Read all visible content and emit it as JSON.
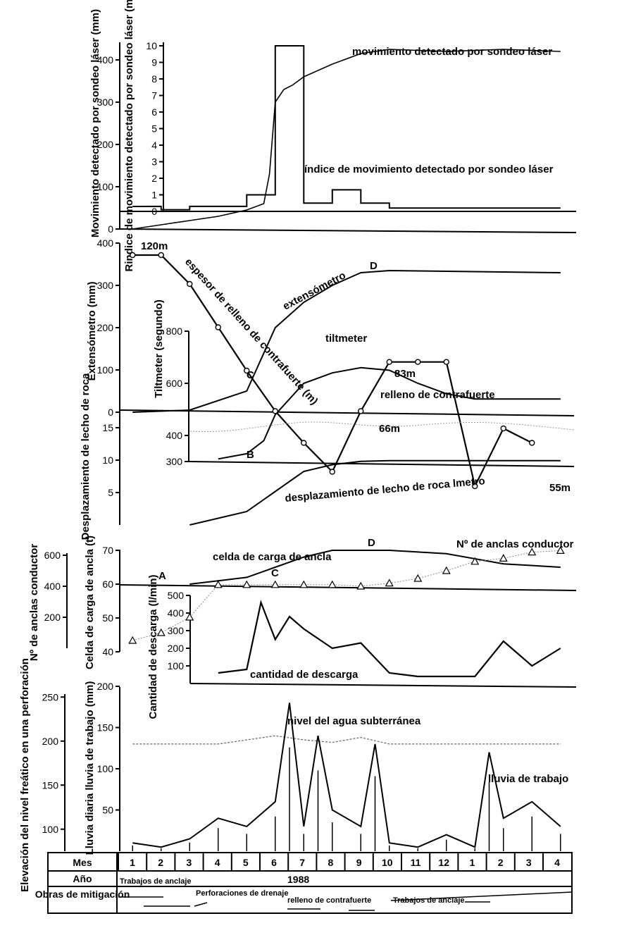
{
  "chart_data": [
    {
      "type": "line",
      "panel": "laser",
      "axes": [
        {
          "label": "Movimiento detectado por sondeo láser (mm)",
          "ticks": [
            "0",
            "100",
            "200",
            "300",
            "400"
          ]
        },
        {
          "label": "Rindice de movimiento detectado por sondeo láser (mm/día)",
          "ticks": [
            "0",
            "1",
            "2",
            "3",
            "4",
            "5",
            "6",
            "7",
            "8",
            "9",
            "10"
          ]
        }
      ],
      "series": [
        {
          "name": "movimiento detectado por sondeo láser",
          "unit": "mm",
          "x": [
            1,
            2,
            3,
            4,
            5,
            5.6,
            5.8,
            6.0,
            6.3,
            6.6,
            7,
            8,
            9,
            10,
            12,
            14,
            16
          ],
          "values": [
            0,
            10,
            20,
            30,
            45,
            60,
            130,
            300,
            330,
            340,
            360,
            390,
            415,
            425,
            420,
            425,
            420
          ]
        },
        {
          "name": "índice de movimiento detectado por sondeo láser",
          "unit": "mm/día",
          "x": [
            1,
            2,
            3,
            4,
            5,
            5.6,
            6.0,
            6.5,
            7,
            7.5,
            8,
            9,
            10,
            16
          ],
          "values": [
            0.3,
            0.1,
            0.3,
            0.3,
            1,
            1,
            10,
            10,
            0.5,
            0.5,
            1.3,
            0.5,
            0.2,
            0.2
          ]
        }
      ]
    },
    {
      "type": "line",
      "panel": "extensometer",
      "axes": [
        {
          "label": "Extensómetro (mm)",
          "ticks": [
            "0",
            "100",
            "200",
            "300",
            "400"
          ]
        },
        {
          "label": "Tiltmeter (segundo)",
          "ticks": [
            "300",
            "400",
            "600",
            "800"
          ]
        },
        {
          "label": "Desplazamiento de lecho de roca",
          "ticks": [
            "5",
            "10",
            "15"
          ]
        }
      ],
      "series": [
        {
          "name": "extensómetro",
          "x": [
            1,
            3,
            5,
            6,
            7,
            8,
            9,
            10,
            16
          ],
          "values": [
            0,
            5,
            50,
            200,
            260,
            300,
            330,
            335,
            330
          ]
        },
        {
          "name": "tiltmeter",
          "x": [
            4,
            5,
            5.6,
            6,
            7,
            8,
            9,
            10,
            11,
            12,
            13,
            16
          ],
          "values": [
            310,
            330,
            380,
            480,
            600,
            640,
            660,
            650,
            600,
            560,
            540,
            540
          ]
        },
        {
          "name": "espesor de relleno de contrafuerte",
          "unit": "m",
          "x": [
            1,
            2,
            3,
            4,
            5,
            6,
            7,
            8,
            9,
            10,
            11,
            12,
            13,
            14,
            15
          ],
          "values": [
            120,
            120,
            110,
            95,
            80,
            66,
            55,
            45,
            66,
            83,
            83,
            83,
            40,
            60,
            55
          ]
        },
        {
          "name": "desplazamiento de lecho de roca",
          "x": [
            3,
            5,
            6,
            7,
            8,
            9,
            10,
            16
          ],
          "values": [
            0,
            2,
            5,
            8,
            9,
            9.5,
            9.6,
            9.6
          ]
        }
      ],
      "annotations": [
        "120m",
        "83m",
        "66m",
        "55m",
        "A",
        "B",
        "C",
        "D"
      ]
    },
    {
      "type": "line",
      "panel": "anchor",
      "axes": [
        {
          "label": "Nº de anclas conductor",
          "ticks": [
            "200",
            "400",
            "600"
          ]
        },
        {
          "label": "Celda de carga de ancla (t)",
          "ticks": [
            "40",
            "50",
            "60",
            "70"
          ]
        },
        {
          "label": "Cantidad de descarga (l/min)",
          "ticks": [
            "100",
            "200",
            "300",
            "400",
            "500"
          ]
        }
      ],
      "series": [
        {
          "name": "celda de carga de ancla",
          "unit": "t",
          "x": [
            3,
            4,
            5,
            6,
            7,
            8,
            9,
            10,
            12,
            14,
            16
          ],
          "values": [
            60,
            61,
            62,
            65,
            68,
            70,
            70,
            70,
            69,
            66,
            65
          ]
        },
        {
          "name": "Nº de anclas conductor",
          "x": [
            1,
            2,
            3,
            4,
            5,
            6,
            7,
            8,
            9,
            10,
            11,
            12,
            13,
            14,
            15,
            16
          ],
          "values": [
            50,
            100,
            200,
            410,
            410,
            410,
            410,
            410,
            400,
            420,
            450,
            500,
            560,
            580,
            620,
            630
          ]
        },
        {
          "name": "cantidad de descarga",
          "unit": "l/min",
          "x": [
            4,
            5,
            5.5,
            6,
            6.5,
            7,
            8,
            9,
            10,
            11,
            12,
            13,
            14,
            15,
            16
          ],
          "values": [
            60,
            80,
            460,
            250,
            380,
            310,
            200,
            230,
            60,
            40,
            40,
            40,
            240,
            100,
            200
          ]
        }
      ]
    },
    {
      "type": "line",
      "panel": "water",
      "axes": [
        {
          "label": "Elevación del nivel freático en una perforación",
          "ticks": [
            "100",
            "150",
            "200",
            "250"
          ]
        },
        {
          "label": "Lluvia diaria lluvia de trabajo (mm)",
          "ticks": [
            "50",
            "100",
            "150",
            "200"
          ]
        }
      ],
      "series": [
        {
          "name": "nivel del agua subterránea",
          "x": [
            1,
            4,
            6,
            7,
            8,
            9,
            10,
            12,
            14,
            16
          ],
          "values": [
            130,
            130,
            140,
            135,
            132,
            138,
            130,
            130,
            130,
            130
          ]
        },
        {
          "name": "lluvia de trabajo",
          "x": [
            1,
            2,
            3,
            4,
            5,
            6,
            6.5,
            7,
            7.5,
            8,
            9,
            9.5,
            10,
            11,
            12,
            13,
            13.5,
            14,
            15,
            16
          ],
          "values": [
            10,
            5,
            15,
            40,
            30,
            60,
            180,
            30,
            140,
            50,
            30,
            130,
            10,
            5,
            20,
            5,
            120,
            40,
            60,
            30
          ]
        }
      ]
    }
  ],
  "labels": {
    "laser_move": "movimiento detectado por sondeo láser",
    "laser_rate": "índice de movimiento detectado por sondeo láser",
    "buttress_thick": "espesor de relleno de contrafuerte (m)",
    "extenso": "extensómetro",
    "tilt": "tiltmeter",
    "relleno": "relleno de contrafuerte",
    "lecho": "desplazamiento de lecho de roca lmetro",
    "celda": "celda de carga de ancla",
    "nanclas": "Nº de anclas conductor",
    "descarga": "cantidad de descarga",
    "nivel": "nivel del agua subterránea",
    "lluvia": "lluvia de trabajo",
    "c120": "120m",
    "c83": "83m",
    "c66": "66m",
    "c55": "55m",
    "A": "A",
    "B": "B",
    "C": "C",
    "D": "D"
  },
  "table": {
    "row_month_label": "Mes",
    "row_year_label": "Año",
    "row_works_label": "Obras de mitigación",
    "months": [
      "1",
      "2",
      "3",
      "4",
      "5",
      "6",
      "7",
      "8",
      "9",
      "10",
      "11",
      "12",
      "1",
      "2",
      "3",
      "4"
    ],
    "year": "1988",
    "works": [
      "Trabajos de anclaje",
      "Perforaciones de drenaje",
      "relleno de contrafuerte",
      "Trabajos de anclaje"
    ]
  }
}
